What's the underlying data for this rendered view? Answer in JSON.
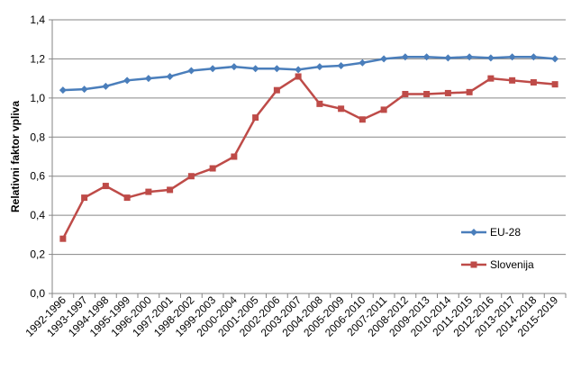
{
  "chart_data": {
    "type": "line",
    "title": "",
    "xlabel": "",
    "ylabel": "Relativni faktor vpliva",
    "ylim": [
      0,
      1.4
    ],
    "yticks": [
      "0,0",
      "0,2",
      "0,4",
      "0,6",
      "0,8",
      "1,0",
      "1,2",
      "1,4"
    ],
    "grid": true,
    "legend": "right",
    "categories": [
      "1992-1996",
      "1993-1997",
      "1994-1998",
      "1995-1999",
      "1996-2000",
      "1997-2001",
      "1998-2002",
      "1999-2003",
      "2000-2004",
      "2001-2005",
      "2002-2006",
      "2003-2007",
      "2004-2008",
      "2005-2009",
      "2006-2010",
      "2007-2011",
      "2008-2012",
      "2009-2013",
      "2010-2014",
      "2011-2015",
      "2012-2016",
      "2013-2017",
      "2014-2018",
      "2015-2019"
    ],
    "series": [
      {
        "name": "EU-28",
        "color": "#4a7ebb",
        "marker": "diamond",
        "values": [
          1.04,
          1.045,
          1.06,
          1.09,
          1.1,
          1.11,
          1.14,
          1.15,
          1.16,
          1.15,
          1.15,
          1.145,
          1.16,
          1.165,
          1.18,
          1.2,
          1.21,
          1.21,
          1.205,
          1.21,
          1.205,
          1.21,
          1.21,
          1.2
        ]
      },
      {
        "name": "Slovenija",
        "color": "#be4b48",
        "marker": "square",
        "values": [
          0.28,
          0.49,
          0.55,
          0.49,
          0.52,
          0.53,
          0.6,
          0.64,
          0.7,
          0.9,
          1.04,
          1.11,
          0.97,
          0.945,
          0.89,
          0.94,
          1.02,
          1.02,
          1.025,
          1.03,
          1.1,
          1.09,
          1.08,
          1.07
        ]
      }
    ]
  }
}
